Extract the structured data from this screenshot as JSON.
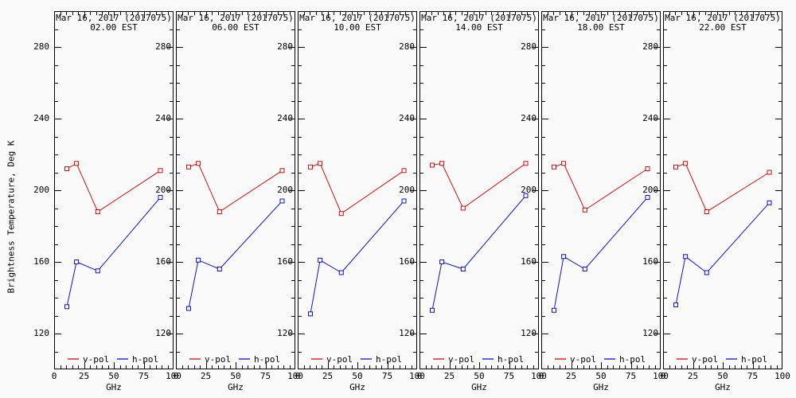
{
  "figure": {
    "ylabel": "Brightness Temperature, Deg K",
    "xlabel": "GHz",
    "background": "#fafafa",
    "axis_color": "#000000",
    "legend": {
      "vpol_label": "v-pol",
      "hpol_label": "h-pol",
      "position": "bottom-inside"
    },
    "colors": {
      "vpol": "#cc1111",
      "hpol": "#1111cc"
    }
  },
  "chart_data": [
    {
      "type": "line",
      "title": "Mar 16, 2017 (2017075)",
      "subtitle": "02.00 EST",
      "x": [
        10.65,
        18.7,
        36.5,
        89.0
      ],
      "xlabel": "GHz",
      "ylabel": "Brightness Temperature, Deg K",
      "xlim": [
        0,
        100
      ],
      "ylim": [
        100,
        300
      ],
      "xticks": [
        0,
        25,
        50,
        75,
        100
      ],
      "yticks": [
        120,
        160,
        200,
        240,
        280
      ],
      "grid": false,
      "legend_position": "bottom-inside",
      "series": [
        {
          "name": "v-pol",
          "color": "#cc1111",
          "values": [
            212,
            215,
            188,
            211
          ]
        },
        {
          "name": "h-pol",
          "color": "#1111cc",
          "values": [
            135,
            160,
            155,
            196
          ]
        }
      ]
    },
    {
      "type": "line",
      "title": "Mar 16, 2017 (2017075)",
      "subtitle": "06.00 EST",
      "x": [
        10.65,
        18.7,
        36.5,
        89.0
      ],
      "xlabel": "GHz",
      "ylabel": "Brightness Temperature, Deg K",
      "xlim": [
        0,
        100
      ],
      "ylim": [
        100,
        300
      ],
      "xticks": [
        0,
        25,
        50,
        75,
        100
      ],
      "yticks": [
        120,
        160,
        200,
        240,
        280
      ],
      "grid": false,
      "legend_position": "bottom-inside",
      "series": [
        {
          "name": "v-pol",
          "color": "#cc1111",
          "values": [
            213,
            215,
            188,
            211
          ]
        },
        {
          "name": "h-pol",
          "color": "#1111cc",
          "values": [
            134,
            161,
            156,
            194
          ]
        }
      ]
    },
    {
      "type": "line",
      "title": "Mar 16, 2017 (2017075)",
      "subtitle": "10.00 EST",
      "x": [
        10.65,
        18.7,
        36.5,
        89.0
      ],
      "xlabel": "GHz",
      "ylabel": "Brightness Temperature, Deg K",
      "xlim": [
        0,
        100
      ],
      "ylim": [
        100,
        300
      ],
      "xticks": [
        0,
        25,
        50,
        75,
        100
      ],
      "yticks": [
        120,
        160,
        200,
        240,
        280
      ],
      "grid": false,
      "legend_position": "bottom-inside",
      "series": [
        {
          "name": "v-pol",
          "color": "#cc1111",
          "values": [
            213,
            215,
            187,
            211
          ]
        },
        {
          "name": "h-pol",
          "color": "#1111cc",
          "values": [
            131,
            161,
            154,
            194
          ]
        }
      ]
    },
    {
      "type": "line",
      "title": "Mar 16, 2017 (2017075)",
      "subtitle": "14.00 EST",
      "x": [
        10.65,
        18.7,
        36.5,
        89.0
      ],
      "xlabel": "GHz",
      "ylabel": "Brightness Temperature, Deg K",
      "xlim": [
        0,
        100
      ],
      "ylim": [
        100,
        300
      ],
      "xticks": [
        0,
        25,
        50,
        75,
        100
      ],
      "yticks": [
        120,
        160,
        200,
        240,
        280
      ],
      "grid": false,
      "legend_position": "bottom-inside",
      "series": [
        {
          "name": "v-pol",
          "color": "#cc1111",
          "values": [
            214,
            215,
            190,
            215
          ]
        },
        {
          "name": "h-pol",
          "color": "#1111cc",
          "values": [
            133,
            160,
            156,
            197
          ]
        }
      ]
    },
    {
      "type": "line",
      "title": "Mar 16, 2017 (2017075)",
      "subtitle": "18.00 EST",
      "x": [
        10.65,
        18.7,
        36.5,
        89.0
      ],
      "xlabel": "GHz",
      "ylabel": "Brightness Temperature, Deg K",
      "xlim": [
        0,
        100
      ],
      "ylim": [
        100,
        300
      ],
      "xticks": [
        0,
        25,
        50,
        75,
        100
      ],
      "yticks": [
        120,
        160,
        200,
        240,
        280
      ],
      "grid": false,
      "legend_position": "bottom-inside",
      "series": [
        {
          "name": "v-pol",
          "color": "#cc1111",
          "values": [
            213,
            215,
            189,
            212
          ]
        },
        {
          "name": "h-pol",
          "color": "#1111cc",
          "values": [
            133,
            163,
            156,
            196
          ]
        }
      ]
    },
    {
      "type": "line",
      "title": "Mar 16, 2017 (2017075)",
      "subtitle": "22.00 EST",
      "x": [
        10.65,
        18.7,
        36.5,
        89.0
      ],
      "xlabel": "GHz",
      "ylabel": "Brightness Temperature, Deg K",
      "xlim": [
        0,
        100
      ],
      "ylim": [
        100,
        300
      ],
      "xticks": [
        0,
        25,
        50,
        75,
        100
      ],
      "yticks": [
        120,
        160,
        200,
        240,
        280
      ],
      "grid": false,
      "legend_position": "bottom-inside",
      "series": [
        {
          "name": "v-pol",
          "color": "#cc1111",
          "values": [
            213,
            215,
            188,
            210
          ]
        },
        {
          "name": "h-pol",
          "color": "#1111cc",
          "values": [
            136,
            163,
            154,
            193
          ]
        }
      ]
    }
  ]
}
